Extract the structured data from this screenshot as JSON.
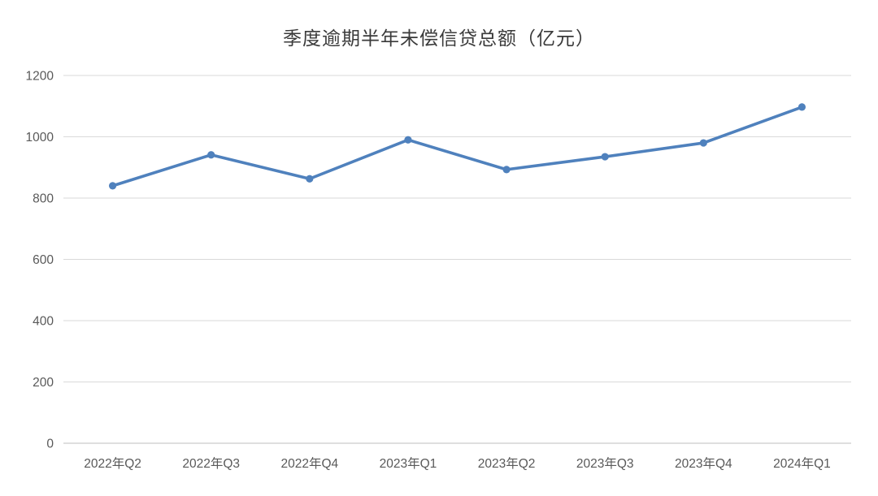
{
  "chart_data": {
    "type": "line",
    "title": "季度逾期半年未偿信贷总额（亿元）",
    "categories": [
      "2022年Q2",
      "2022年Q3",
      "2022年Q4",
      "2023年Q1",
      "2023年Q2",
      "2023年Q3",
      "2023年Q4",
      "2024年Q1"
    ],
    "series": [
      {
        "name": "季度逾期半年未偿信贷总额",
        "values": [
          840,
          941,
          863,
          990,
          893,
          935,
          980,
          1097
        ]
      }
    ],
    "xlabel": "",
    "ylabel": "",
    "ylim": [
      0,
      1200
    ],
    "yticks": [
      0,
      200,
      400,
      600,
      800,
      1000,
      1200
    ],
    "grid": true,
    "legend_position": "none",
    "line_color": "#4F81BD",
    "marker": "circle",
    "gridline_color": "#D9D9D9",
    "axis_line_color": "#BFBFBF",
    "tick_label_color": "#595959",
    "title_color": "#3A3A3A",
    "background": "#FFFFFF"
  }
}
